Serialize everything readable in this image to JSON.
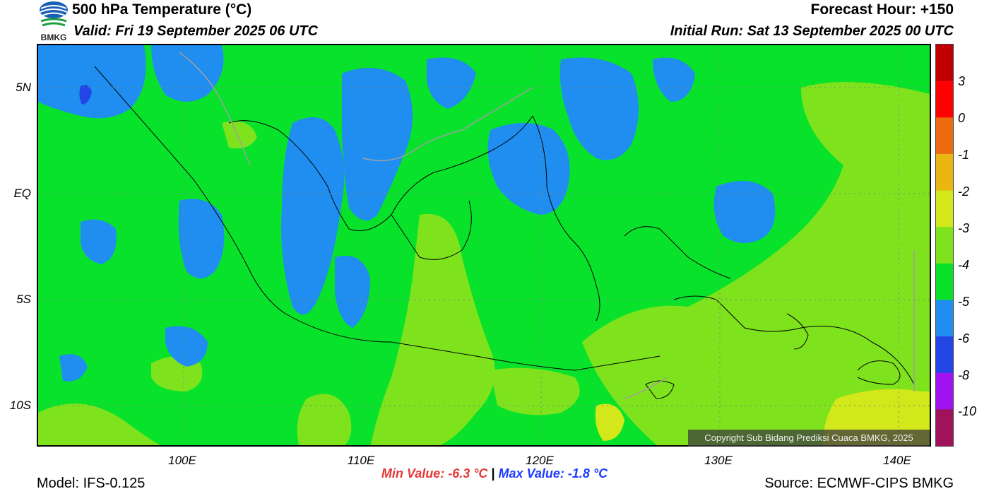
{
  "header": {
    "logo_text": "BMKG",
    "title": "500 hPa Temperature (°C)",
    "valid": "Valid: Fri 19 September 2025 06 UTC",
    "forecast_hour": "Forecast Hour: +150",
    "initial_run": "Initial Run: Sat 13 September 2025 00 UTC"
  },
  "map": {
    "lat_labels": [
      "5N",
      "EQ",
      "5S",
      "10S"
    ],
    "lon_labels": [
      "100E",
      "110E",
      "120E",
      "130E",
      "140E"
    ],
    "copyright": "Copyright Sub Bidang Prediksi Cuaca BMKG, 2025",
    "colors": {
      "band_-4_-3": "#08e22a",
      "band_-5_-4": "#1f8ef0",
      "band_-6_-5": "#2246e6",
      "band_-3_-2": "#7ee31c",
      "band_-2_-1": "#d3e81a",
      "coastline": "#000000",
      "border": "#a0a0a0"
    }
  },
  "colorbar": {
    "labels": [
      "3",
      "0",
      "-1",
      "-2",
      "-3",
      "-4",
      "-5",
      "-6",
      "-8",
      "-10"
    ],
    "colors": [
      "#c00000",
      "#ff0000",
      "#ee6a10",
      "#e9b612",
      "#d3e81a",
      "#7ee31c",
      "#08e22a",
      "#1f8ef0",
      "#2246e6",
      "#a012f0",
      "#a0125a"
    ]
  },
  "stats": {
    "min_value": "Min Value: -6.3 °C",
    "separator": "|",
    "max_value": "Max Value: -1.8 °C"
  },
  "footer": {
    "model": "Model: IFS-0.125",
    "source": "Source: ECMWF-CIPS BMKG"
  }
}
